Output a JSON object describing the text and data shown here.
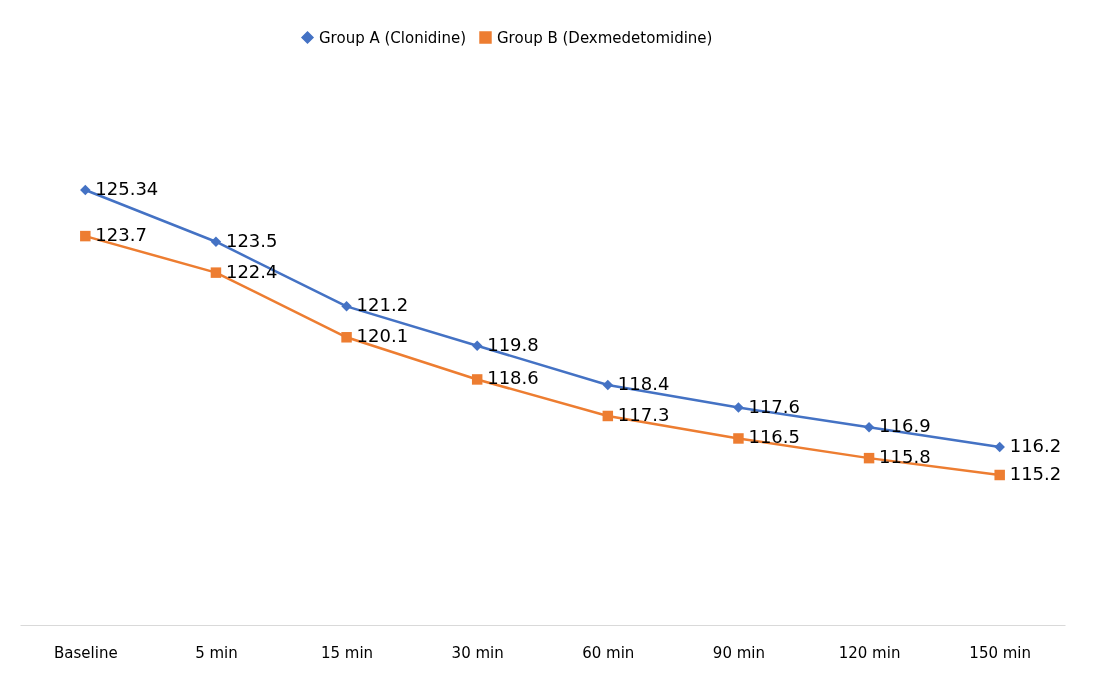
{
  "chart_data": {
    "type": "line",
    "categories": [
      "Baseline",
      "5 min",
      "15 min",
      "30 min",
      "60 min",
      "90 min",
      "120 min",
      "150 min"
    ],
    "series": [
      {
        "name": "Group A (Clonidine)",
        "color": "#4472c4",
        "marker": "diamond",
        "values": [
          125.34,
          123.5,
          121.2,
          119.8,
          118.4,
          117.6,
          116.9,
          116.2
        ]
      },
      {
        "name": "Group B (Dexmedetomidine)",
        "color": "#ed7d31",
        "marker": "square",
        "values": [
          123.7,
          122.4,
          120.1,
          118.6,
          117.3,
          116.5,
          115.8,
          115.2
        ]
      }
    ],
    "tick_labels": "x",
    "data_labels": true,
    "legend": "top",
    "grid": false,
    "line_style": "solid"
  }
}
